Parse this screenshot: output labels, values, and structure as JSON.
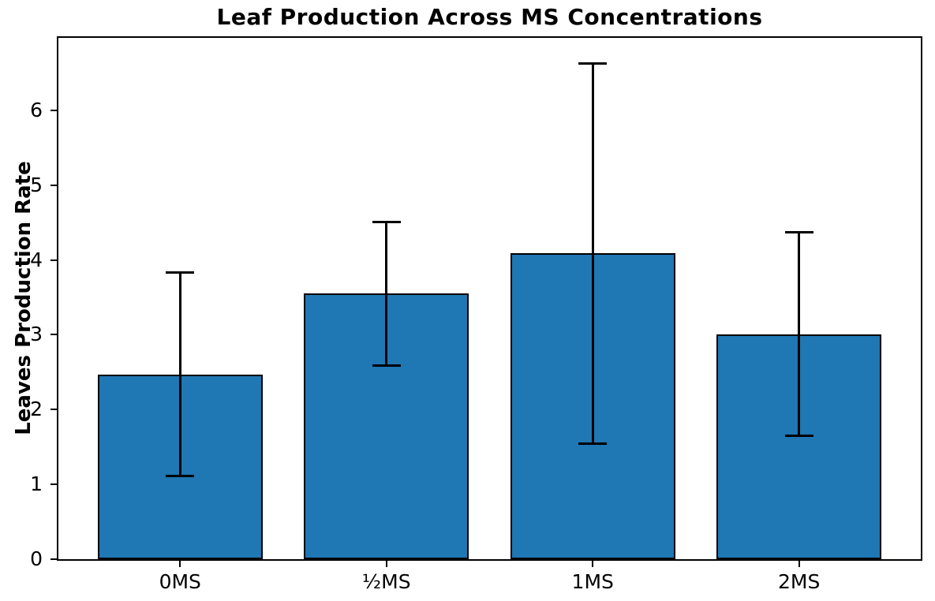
{
  "chart_data": {
    "type": "bar",
    "title": "Leaf Production Across MS Concentrations",
    "ylabel": "Leaves Production Rate",
    "xlabel": "",
    "categories": [
      "0MS",
      "½MS",
      "1MS",
      "2MS"
    ],
    "values": [
      2.47,
      3.55,
      4.09,
      3.01
    ],
    "error_bars": [
      1.36,
      0.96,
      2.54,
      1.36
    ],
    "yticks": [
      0,
      1,
      2,
      3,
      4,
      5,
      6
    ],
    "ylim": [
      0,
      6.97
    ],
    "grid": false,
    "legend": "none",
    "bar_color": "#1f77b4",
    "bar_edge_color": "#000000",
    "error_color": "#000000",
    "background_color": "#ffffff",
    "text_color": "#000000"
  }
}
